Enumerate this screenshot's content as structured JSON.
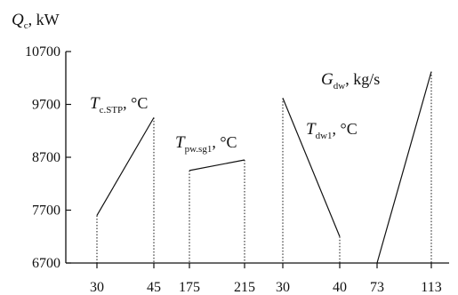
{
  "chart_data": {
    "type": "line",
    "ylabel_var": "Q",
    "ylabel_sub": "c",
    "ylabel_unit": ", kW",
    "ylim": [
      6700,
      10700
    ],
    "yticks": [
      "6700",
      "7700",
      "8700",
      "9700",
      "10700"
    ],
    "grid": false,
    "panels": [
      {
        "label_var": "T",
        "label_sub": "c.STP",
        "label_unit": ", °C",
        "x_ticks": [
          "30",
          "45"
        ],
        "points": [
          [
            30,
            7600
          ],
          [
            45,
            9450
          ]
        ]
      },
      {
        "label_var": "T",
        "label_sub": "pw.sg1",
        "label_unit": ", °C",
        "x_ticks": [
          "175",
          "215"
        ],
        "points": [
          [
            175,
            8450
          ],
          [
            215,
            8650
          ]
        ]
      },
      {
        "label_var": "T",
        "label_sub": "dw1",
        "label_unit": ", °C",
        "x_ticks": [
          "30",
          "40"
        ],
        "points": [
          [
            30,
            9820
          ],
          [
            40,
            7200
          ]
        ]
      },
      {
        "label_var": "G",
        "label_sub": "dw",
        "label_unit": ", kg/s",
        "x_ticks": [
          "73",
          "113"
        ],
        "points": [
          [
            73,
            6700
          ],
          [
            113,
            10320
          ]
        ]
      }
    ]
  }
}
